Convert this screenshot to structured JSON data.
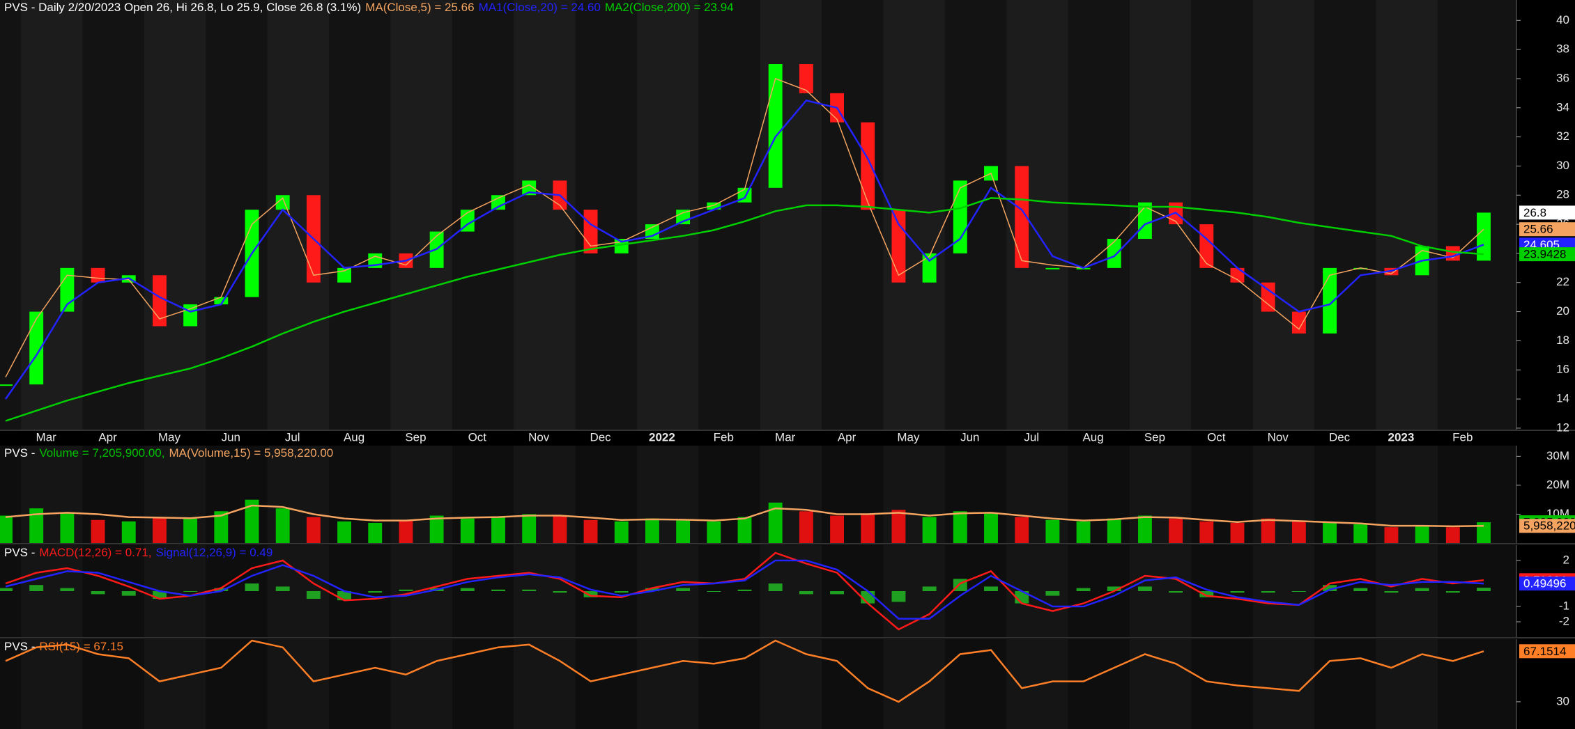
{
  "chart_data": [
    {
      "type": "candlestick",
      "title": "PVS - Daily 2/20/2023 Open 26, Hi 26.8, Lo 25.9, Close 26.8 (3.1%)",
      "categories": [
        null,
        "Mar",
        null,
        "Apr",
        null,
        "May",
        null,
        "Jun",
        null,
        "Jul",
        null,
        "Aug",
        null,
        "Sep",
        null,
        "Oct",
        null,
        "Nov",
        null,
        "Dec",
        null,
        "2022",
        null,
        "Feb",
        null,
        "Mar",
        null,
        "Apr",
        null,
        "May",
        null,
        "Jun",
        null,
        "Jul",
        null,
        "Aug",
        null,
        "Sep",
        null,
        "Oct",
        null,
        "Nov",
        null,
        "Dec",
        null,
        "2023",
        null,
        "Feb",
        null
      ],
      "ylim": [
        11.9,
        41.4
      ],
      "yticks": [
        12,
        14,
        16,
        18,
        20,
        22,
        24,
        26,
        28,
        30,
        32,
        34,
        36,
        38,
        40
      ],
      "series": [
        {
          "type": "candle",
          "up_color": "#00ff00",
          "down_color": "#ff1a1a",
          "last_label": "26.8",
          "color": "#ffffff",
          "values": [
            15,
            20,
            23,
            22,
            22.5,
            19,
            20.5,
            21,
            27,
            28,
            22,
            23,
            24,
            23,
            25.5,
            27,
            28,
            29,
            27,
            24,
            25,
            26,
            27,
            27.5,
            28.5,
            37,
            35,
            33,
            27,
            22,
            24,
            29,
            30,
            23,
            23,
            23,
            25,
            27.5,
            26,
            23,
            22,
            20,
            18.5,
            23,
            23,
            22.5,
            24.5,
            23.5,
            26.8
          ]
        },
        {
          "type": "line",
          "name": "MA(Close,5) = 25.66",
          "color": "#f4a460",
          "last_label": "25.66",
          "values": [
            15.5,
            19.5,
            22.5,
            22.3,
            22.2,
            19.5,
            20.2,
            21,
            26,
            27.8,
            22.5,
            22.8,
            23.8,
            23.2,
            25.2,
            26.8,
            27.8,
            28.7,
            27.3,
            24.5,
            24.8,
            25.8,
            26.8,
            27.3,
            28.4,
            36,
            35.2,
            33.2,
            27.5,
            22.5,
            23.8,
            28.5,
            29.5,
            23.5,
            23.2,
            23,
            24.8,
            27.2,
            26.2,
            23.3,
            22.2,
            20.5,
            18.8,
            22.5,
            23,
            22.6,
            24.2,
            23.7,
            25.66
          ]
        },
        {
          "type": "line",
          "name": "MA1(Close,20) = 24.60",
          "color": "#2323ff",
          "last_label": "24.605",
          "values": [
            14,
            17,
            20.5,
            22,
            22.3,
            21,
            20,
            20.5,
            24,
            27,
            25,
            23,
            23.2,
            23.5,
            24.3,
            26,
            27.2,
            28.2,
            28,
            26,
            24.8,
            25.2,
            26.2,
            27,
            27.8,
            32,
            34.5,
            34,
            30.5,
            26,
            23.5,
            25,
            28.5,
            27,
            23.8,
            23,
            23.8,
            26,
            26.8,
            25,
            23,
            21.5,
            20,
            20.5,
            22.5,
            22.8,
            23.5,
            23.8,
            24.605
          ]
        },
        {
          "type": "line",
          "name": "MA2(Close,200) = 23.94",
          "color": "#00d000",
          "last_label": "23.9428",
          "values": [
            12.5,
            13.2,
            13.9,
            14.5,
            15.1,
            15.6,
            16.1,
            16.8,
            17.6,
            18.5,
            19.3,
            20,
            20.6,
            21.2,
            21.8,
            22.4,
            22.9,
            23.4,
            23.9,
            24.3,
            24.6,
            24.9,
            25.2,
            25.6,
            26.2,
            26.9,
            27.3,
            27.3,
            27.2,
            27,
            26.8,
            27.1,
            27.8,
            27.7,
            27.5,
            27.4,
            27.3,
            27.2,
            27.2,
            27,
            26.8,
            26.5,
            26.1,
            25.8,
            25.5,
            25.2,
            24.5,
            24.1,
            23.9428
          ]
        }
      ]
    },
    {
      "type": "bar",
      "title": "PVS -",
      "ylim": [
        0,
        33700000
      ],
      "yticks": [
        {
          "value": 10000000,
          "label": "10M"
        },
        {
          "value": 20000000,
          "label": "20M"
        },
        {
          "value": 30000000,
          "label": "30M"
        }
      ],
      "series": [
        {
          "type": "bar",
          "name": "Volume = 7,205,900.00,",
          "color": "#00c000",
          "up_color": "#00c000",
          "down_color": "#e01010",
          "last_label": "7,205,900",
          "values": [
            9500000,
            12000000,
            10500000,
            8000000,
            7500000,
            9000000,
            8500000,
            11000000,
            15000000,
            12000000,
            9000000,
            7500000,
            7000000,
            8000000,
            9500000,
            8500000,
            9000000,
            10000000,
            9500000,
            8000000,
            7500000,
            8500000,
            8000000,
            7500000,
            9000000,
            14000000,
            11000000,
            9500000,
            10000000,
            11500000,
            9000000,
            11000000,
            10500000,
            9000000,
            8000000,
            7500000,
            8500000,
            9500000,
            8500000,
            7500000,
            7000000,
            8500000,
            7500000,
            7000000,
            6500000,
            5500000,
            6000000,
            5500000,
            7205900
          ]
        },
        {
          "type": "line",
          "name": "MA(Volume,15) = 5,958,220.00",
          "color": "#f4a460",
          "last_label": "5,958,220",
          "values": [
            9000000,
            10000000,
            10500000,
            10000000,
            9000000,
            8800000,
            8600000,
            9500000,
            13000000,
            12500000,
            10000000,
            8500000,
            7800000,
            7800000,
            8500000,
            8800000,
            9000000,
            9500000,
            9500000,
            8800000,
            8000000,
            8200000,
            8100000,
            7800000,
            8500000,
            12000000,
            11500000,
            10000000,
            10000000,
            10500000,
            9500000,
            10300000,
            10500000,
            9500000,
            8500000,
            7800000,
            8200000,
            9000000,
            8800000,
            8000000,
            7300000,
            8000000,
            7600000,
            7200000,
            6800000,
            6000000,
            6000000,
            5800000,
            5958220
          ]
        }
      ]
    },
    {
      "type": "macd",
      "title": "PVS -",
      "ylim": [
        -3,
        3
      ],
      "yticks": [
        2,
        -1,
        -2
      ],
      "series": [
        {
          "type": "bar",
          "color": "#20a020",
          "values": [
            0.2,
            0.4,
            0.2,
            -0.2,
            -0.3,
            -0.5,
            0,
            0.2,
            0.5,
            0.3,
            -0.5,
            -0.6,
            -0.1,
            0.1,
            0.2,
            0.2,
            0.1,
            0.1,
            -0.1,
            -0.4,
            -0.1,
            0.2,
            0.2,
            0,
            0.1,
            0.5,
            -0.2,
            -0.2,
            -0.8,
            -0.7,
            0.3,
            0.8,
            0.3,
            -0.8,
            -0.3,
            0.2,
            0.3,
            0.3,
            -0.1,
            -0.4,
            -0.1,
            -0.1,
            0,
            0.4,
            0.2,
            -0.1,
            0.2,
            -0.1,
            0.22
          ]
        },
        {
          "type": "line",
          "name": "MACD(12,26) = 0.71,",
          "color": "#ff1a1a",
          "last_label": "0.71264",
          "values": [
            0.5,
            1.2,
            1.5,
            1,
            0.3,
            -0.5,
            -0.3,
            0.2,
            1.5,
            2,
            0.5,
            -0.6,
            -0.5,
            -0.2,
            0.3,
            0.8,
            1,
            1.2,
            0.8,
            -0.3,
            -0.4,
            0.2,
            0.6,
            0.5,
            0.8,
            2.5,
            1.8,
            1.2,
            -0.8,
            -2.5,
            -1.5,
            0.5,
            1.3,
            -0.8,
            -1.3,
            -0.8,
            0,
            1,
            0.8,
            -0.3,
            -0.5,
            -0.8,
            -0.9,
            0.5,
            0.8,
            0.3,
            0.8,
            0.5,
            0.71264
          ]
        },
        {
          "type": "line",
          "name": "Signal(12,26,9) = 0.49",
          "color": "#2323ff",
          "last_label": "0.49496",
          "values": [
            0.3,
            0.8,
            1.3,
            1.2,
            0.6,
            0,
            -0.3,
            0,
            1,
            1.7,
            1,
            0,
            -0.4,
            -0.3,
            0.1,
            0.6,
            0.9,
            1.1,
            0.9,
            0.1,
            -0.3,
            0,
            0.4,
            0.5,
            0.7,
            2,
            2,
            1.4,
            0,
            -1.8,
            -1.8,
            -0.3,
            1,
            0,
            -1,
            -1,
            -0.3,
            0.7,
            0.9,
            0.1,
            -0.4,
            -0.7,
            -0.9,
            0.1,
            0.6,
            0.4,
            0.6,
            0.6,
            0.49496
          ]
        }
      ]
    },
    {
      "type": "line",
      "title": "PVS -",
      "ylim": [
        10,
        76
      ],
      "yticks": [
        30
      ],
      "series": [
        {
          "type": "line",
          "name": "RSI(15) = 67.15",
          "color": "#ff7f27",
          "last_label": "67.1514",
          "values": [
            60,
            70,
            72,
            65,
            62,
            45,
            50,
            55,
            75,
            70,
            45,
            50,
            55,
            50,
            60,
            65,
            70,
            72,
            60,
            45,
            50,
            55,
            60,
            58,
            62,
            75,
            65,
            60,
            40,
            30,
            45,
            65,
            68,
            40,
            45,
            45,
            55,
            65,
            58,
            45,
            42,
            40,
            38,
            60,
            62,
            55,
            65,
            60,
            67.1514
          ]
        }
      ]
    }
  ]
}
